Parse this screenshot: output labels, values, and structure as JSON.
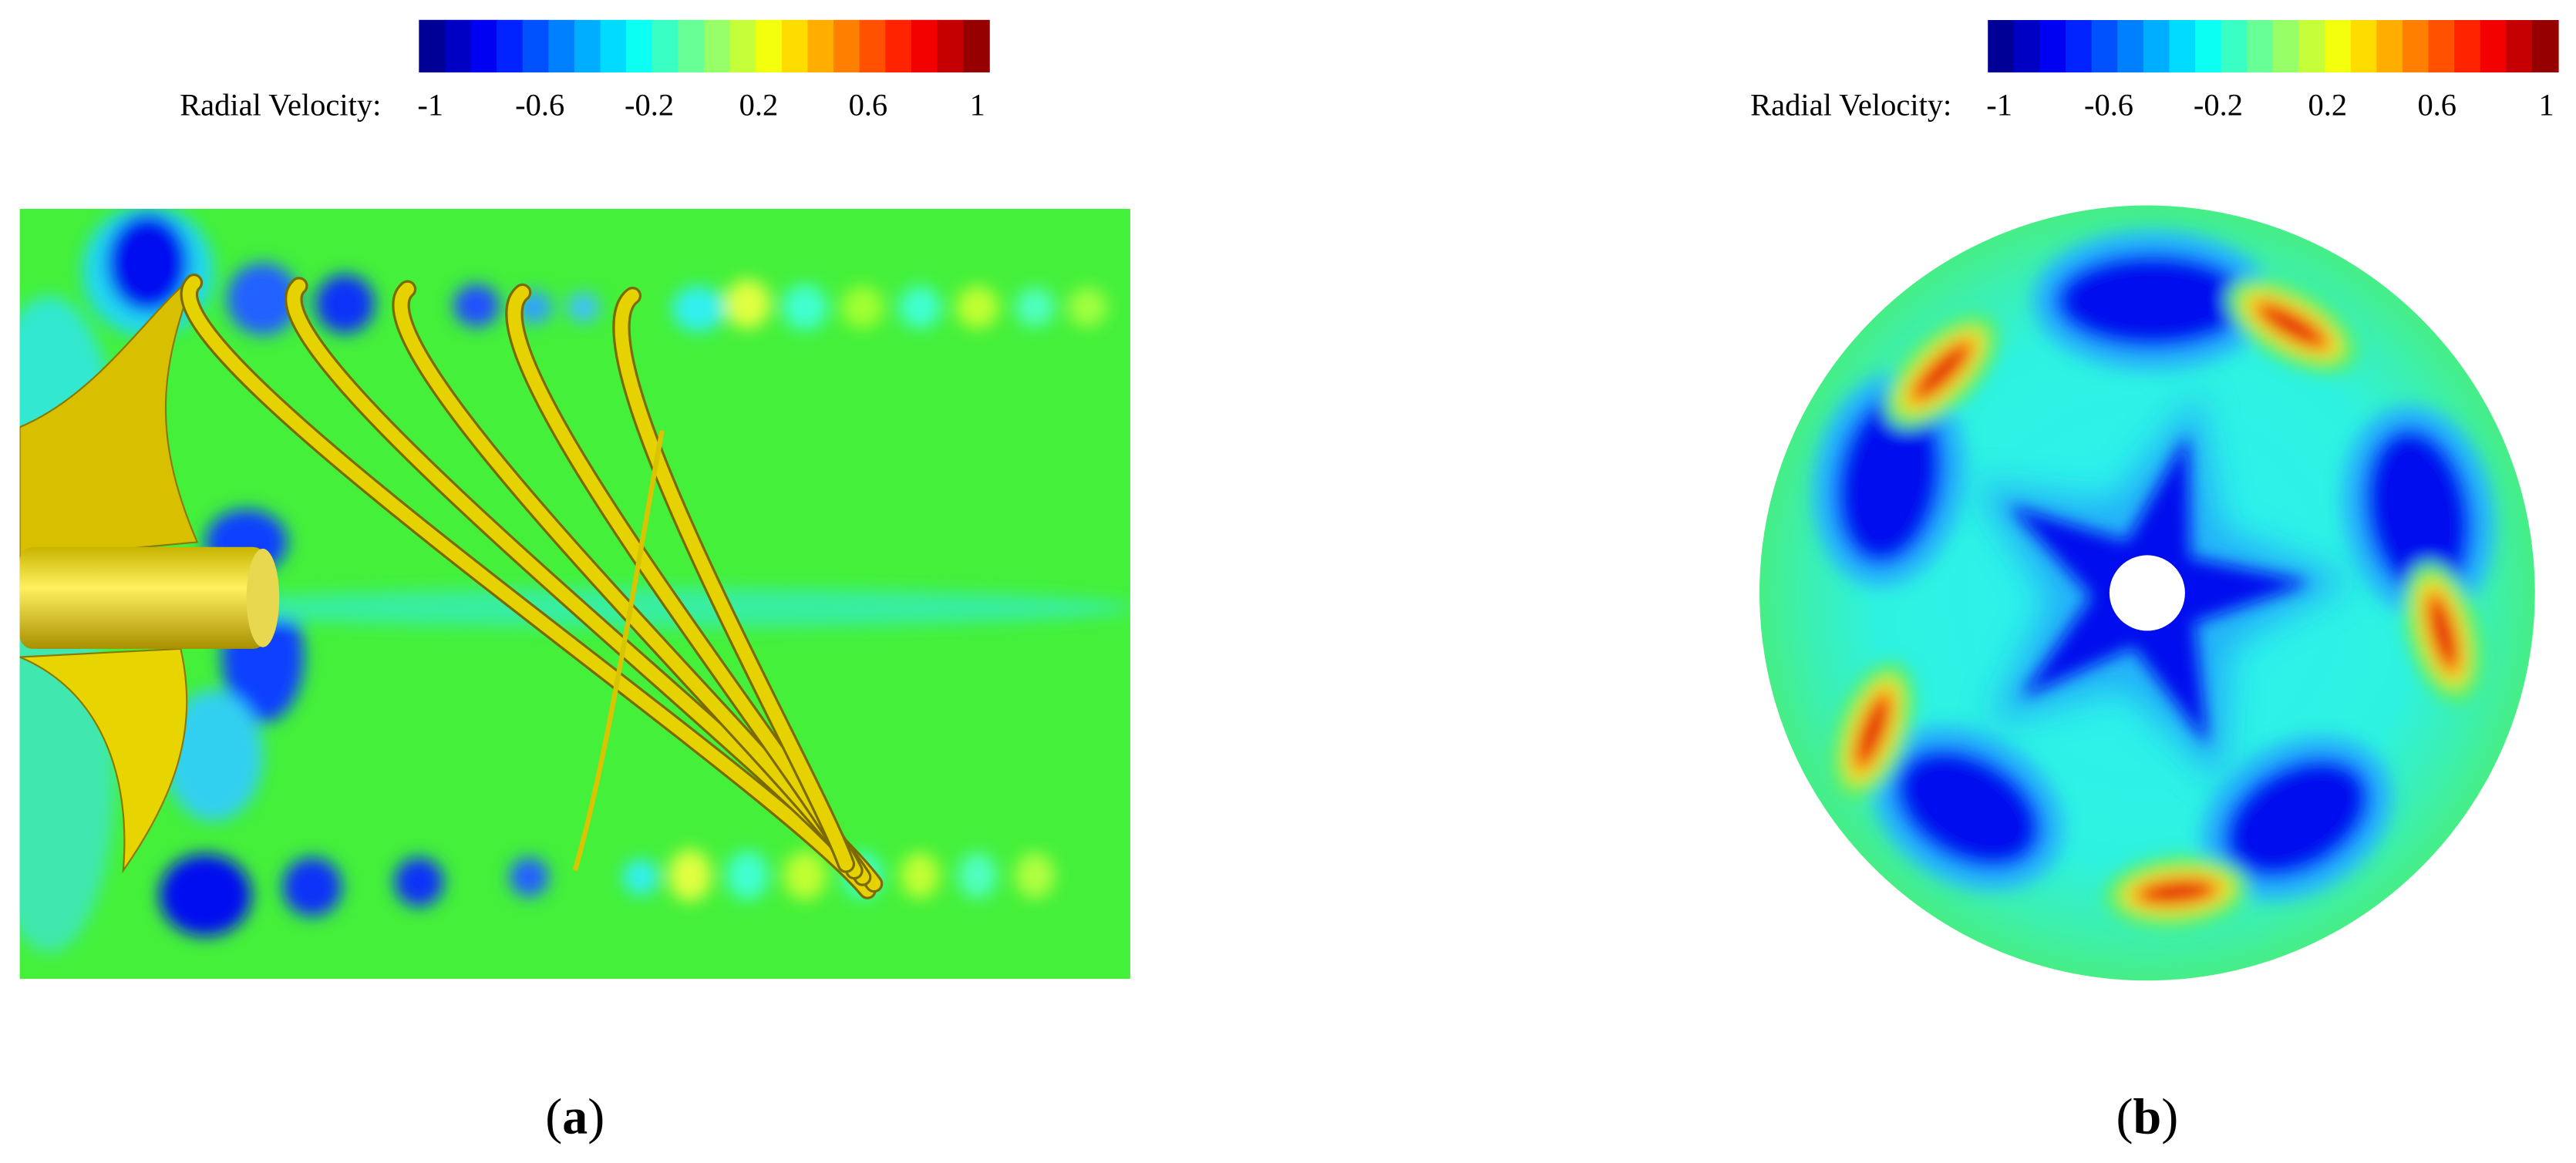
{
  "panels": [
    {
      "colorbar": {
        "label": "Radial Velocity:",
        "ticks": [
          -1,
          -0.6,
          -0.2,
          0.2,
          0.6,
          1
        ]
      },
      "caption": [
        "(",
        "a",
        ")"
      ]
    },
    {
      "colorbar": {
        "label": "Radial Velocity:",
        "ticks": [
          -1,
          -0.6,
          -0.2,
          0.2,
          0.6,
          1
        ]
      },
      "caption": [
        "(",
        "b",
        ")"
      ]
    }
  ]
}
